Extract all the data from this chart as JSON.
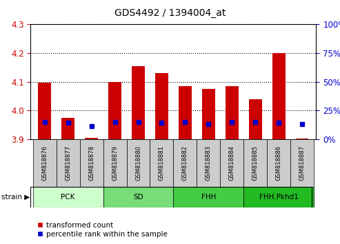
{
  "title": "GDS4492 / 1394004_at",
  "samples": [
    "GSM818876",
    "GSM818877",
    "GSM818878",
    "GSM818879",
    "GSM818880",
    "GSM818881",
    "GSM818882",
    "GSM818883",
    "GSM818884",
    "GSM818885",
    "GSM818886",
    "GSM818887"
  ],
  "red_values": [
    4.097,
    3.974,
    3.905,
    4.1,
    4.155,
    4.13,
    4.085,
    4.075,
    4.085,
    4.04,
    4.2,
    3.902
  ],
  "blue_values": [
    15,
    14,
    11,
    15,
    15,
    14,
    15,
    13,
    15,
    15,
    14,
    13
  ],
  "base_value": 3.9,
  "ylim": [
    3.9,
    4.3
  ],
  "y2lim": [
    0,
    100
  ],
  "yticks": [
    3.9,
    4.0,
    4.1,
    4.2,
    4.3
  ],
  "y2ticks": [
    0,
    25,
    50,
    75,
    100
  ],
  "groups": [
    {
      "label": "PCK",
      "start": 0,
      "end": 2,
      "color": "#ccffcc"
    },
    {
      "label": "SD",
      "start": 3,
      "end": 5,
      "color": "#77dd77"
    },
    {
      "label": "FHH",
      "start": 6,
      "end": 8,
      "color": "#44cc44"
    },
    {
      "label": "FHH.Pkhd1",
      "start": 9,
      "end": 11,
      "color": "#22bb22"
    }
  ],
  "bar_color": "#cc0000",
  "dot_color": "#0000cc",
  "bar_width": 0.55,
  "grid_color": "#000000",
  "tick_color_left": "#cc0000",
  "tick_color_right": "#0000cc",
  "legend_red": "transformed count",
  "legend_blue": "percentile rank within the sample",
  "label_bg": "#cccccc",
  "figsize": [
    4.93,
    3.54
  ],
  "dpi": 100
}
